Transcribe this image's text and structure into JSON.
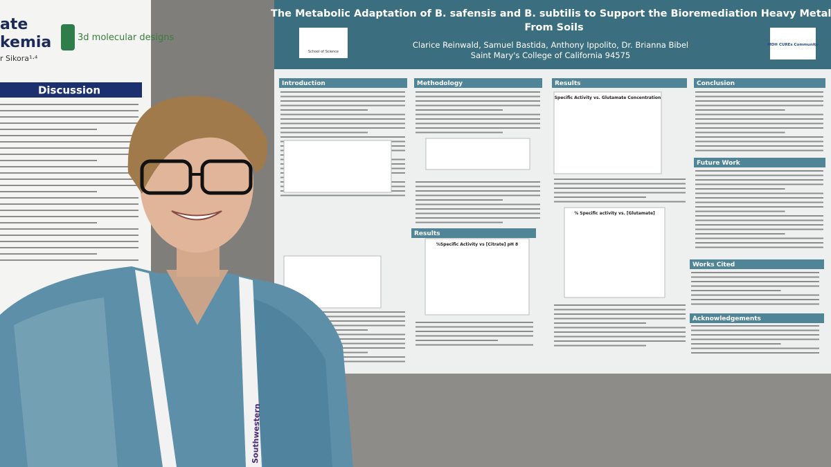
{
  "left_poster": {
    "title_lines": [
      "ate",
      "kemia"
    ],
    "author": "r Sikora¹·⁴",
    "logo": "3d molecular designs",
    "section": "Discussion"
  },
  "poster": {
    "title_lines": [
      "The Metabolic Adaptation of B. safensis and B. subtilis to Support the Bioremediation Heavy Metals",
      "From Soils"
    ],
    "authors": "Clarice Reinwald, Samuel Bastida, Anthony Ippolito, Dr. Brianna Bibel",
    "affiliation": "Saint Mary's College of California 94575",
    "logo_left": "School of Science",
    "logo_right": "MDH CUREs Community",
    "sections": [
      "Introduction",
      "Methodology",
      "Results",
      "Conclusion",
      "Future Work",
      "Results",
      "Works Cited",
      "Acknowledgements"
    ],
    "figure_titles": [
      "Specific Activity vs. Glutamate Concentration",
      "%Specific Activity vs [Citrate] pH 8",
      "% Specific activity vs. [Glutamate]"
    ]
  },
  "lanyard": "Southwestern"
}
